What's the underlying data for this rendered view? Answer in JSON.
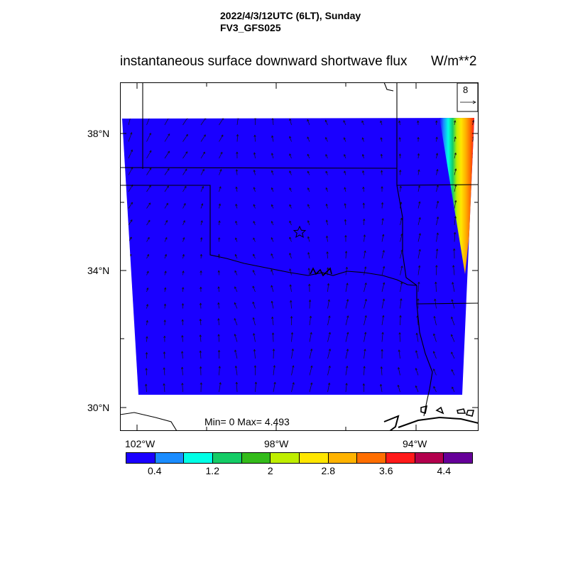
{
  "header": {
    "line1": "2022/4/3/12UTC (6LT), Sunday",
    "line2": "FV3_GFS025"
  },
  "plot": {
    "title": "instantaneous surface downward shortwave flux",
    "units": "W/m**2",
    "min_max": "Min= 0 Max= 4.493",
    "ref_vector": "8",
    "lat_labels": [
      "38°N",
      "34°N",
      "30°N"
    ],
    "lon_labels": [
      "102°W",
      "98°W",
      "94°W"
    ],
    "background_color": "#1a00ff"
  },
  "colorbar": {
    "colors": [
      "#1a00ff",
      "#1a8cff",
      "#00ffe6",
      "#14cc66",
      "#33bb1a",
      "#bfee00",
      "#ffe600",
      "#ffb300",
      "#ff6e00",
      "#ff1a1a",
      "#b3004d",
      "#660099"
    ],
    "labels": [
      "0.4",
      "1.2",
      "2",
      "2.8",
      "3.6",
      "4.4"
    ]
  }
}
